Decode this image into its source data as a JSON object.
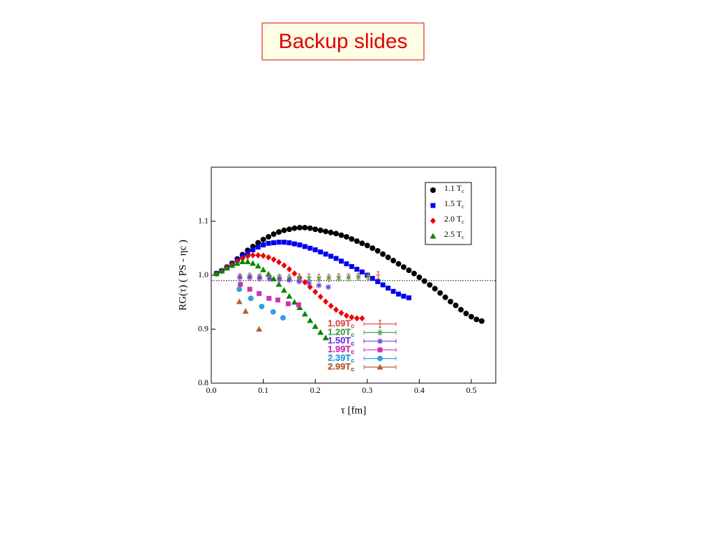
{
  "slide": {
    "title": "Backup slides"
  },
  "chart_data": {
    "type": "scatter",
    "x_label": "τ [fm]",
    "y_label": "RG(τ) ( PS - ηc )",
    "xlim": [
      0,
      0.547
    ],
    "ylim": [
      0.8,
      1.2
    ],
    "xticks": [
      {
        "value": 0,
        "label": "0.0"
      },
      0.1,
      0.2,
      0.3,
      0.4,
      0.5
    ],
    "yticks": [
      0.8,
      0.9,
      {
        "value": 1,
        "label": "1.0"
      },
      1.1
    ],
    "hline": 0.99,
    "series": [
      {
        "name": "1.1 Tc",
        "color": "#000000",
        "marker": "circle",
        "error_bars": false,
        "x": [
          0.01,
          0.02,
          0.03,
          0.04,
          0.05,
          0.06,
          0.07,
          0.08,
          0.09,
          0.1,
          0.11,
          0.12,
          0.13,
          0.14,
          0.15,
          0.16,
          0.17,
          0.18,
          0.19,
          0.2,
          0.21,
          0.22,
          0.23,
          0.24,
          0.25,
          0.26,
          0.27,
          0.28,
          0.29,
          0.3,
          0.31,
          0.32,
          0.33,
          0.34,
          0.35,
          0.36,
          0.37,
          0.38,
          0.39,
          0.4,
          0.41,
          0.42,
          0.43,
          0.44,
          0.45,
          0.46,
          0.47,
          0.48,
          0.49,
          0.5,
          0.51,
          0.52
        ],
        "values": [
          1.003,
          1.008,
          1.015,
          1.022,
          1.03,
          1.038,
          1.046,
          1.053,
          1.06,
          1.066,
          1.071,
          1.076,
          1.08,
          1.083,
          1.085,
          1.087,
          1.088,
          1.088,
          1.087,
          1.085,
          1.083,
          1.081,
          1.079,
          1.077,
          1.074,
          1.071,
          1.067,
          1.063,
          1.059,
          1.055,
          1.05,
          1.045,
          1.039,
          1.033,
          1.027,
          1.021,
          1.015,
          1.009,
          1.003,
          0.996,
          0.989,
          0.982,
          0.975,
          0.967,
          0.959,
          0.951,
          0.944,
          0.936,
          0.929,
          0.923,
          0.918,
          0.915
        ]
      },
      {
        "name": "1.5 Tc",
        "color": "#0000ee",
        "marker": "square",
        "error_bars": false,
        "x": [
          0.01,
          0.02,
          0.03,
          0.04,
          0.05,
          0.06,
          0.07,
          0.08,
          0.09,
          0.1,
          0.11,
          0.12,
          0.13,
          0.14,
          0.15,
          0.16,
          0.17,
          0.18,
          0.19,
          0.2,
          0.21,
          0.22,
          0.23,
          0.24,
          0.25,
          0.26,
          0.27,
          0.28,
          0.29,
          0.3,
          0.31,
          0.32,
          0.33,
          0.34,
          0.35,
          0.36,
          0.37,
          0.38
        ],
        "values": [
          1.003,
          1.008,
          1.014,
          1.021,
          1.028,
          1.035,
          1.041,
          1.047,
          1.052,
          1.056,
          1.059,
          1.06,
          1.061,
          1.061,
          1.06,
          1.058,
          1.056,
          1.053,
          1.05,
          1.047,
          1.043,
          1.039,
          1.035,
          1.031,
          1.026,
          1.021,
          1.016,
          1.011,
          1.006,
          1.0,
          0.994,
          0.988,
          0.982,
          0.976,
          0.97,
          0.965,
          0.961,
          0.958
        ]
      },
      {
        "name": "2.0 Tc",
        "color": "#ee0000",
        "marker": "diamond",
        "error_bars": false,
        "x": [
          0.01,
          0.02,
          0.03,
          0.04,
          0.05,
          0.06,
          0.07,
          0.08,
          0.09,
          0.1,
          0.11,
          0.12,
          0.13,
          0.14,
          0.15,
          0.16,
          0.17,
          0.18,
          0.19,
          0.2,
          0.21,
          0.22,
          0.23,
          0.24,
          0.25,
          0.26,
          0.27,
          0.28,
          0.29
        ],
        "values": [
          1.003,
          1.008,
          1.014,
          1.02,
          1.026,
          1.031,
          1.035,
          1.037,
          1.037,
          1.036,
          1.033,
          1.029,
          1.024,
          1.018,
          1.011,
          1.003,
          0.995,
          0.987,
          0.978,
          0.969,
          0.96,
          0.951,
          0.943,
          0.936,
          0.93,
          0.925,
          0.922,
          0.92,
          0.92
        ]
      },
      {
        "name": "2.5 Tc",
        "color": "#008800",
        "marker": "triangle",
        "error_bars": false,
        "x": [
          0.01,
          0.02,
          0.03,
          0.04,
          0.05,
          0.06,
          0.07,
          0.08,
          0.09,
          0.1,
          0.11,
          0.12,
          0.13,
          0.14,
          0.15,
          0.16,
          0.17,
          0.18,
          0.19,
          0.2,
          0.21,
          0.22
        ],
        "values": [
          1.003,
          1.008,
          1.013,
          1.018,
          1.022,
          1.025,
          1.025,
          1.022,
          1.017,
          1.01,
          1.002,
          0.993,
          0.983,
          0.972,
          0.961,
          0.95,
          0.94,
          0.928,
          0.916,
          0.905,
          0.894,
          0.884
        ]
      },
      {
        "name": "1.09Tc",
        "color": "#e05050",
        "marker": "plus",
        "error_bars": true,
        "x": [
          0.055,
          0.074,
          0.093,
          0.112,
          0.131,
          0.15,
          0.169,
          0.188,
          0.207,
          0.226,
          0.245,
          0.264,
          0.283,
          0.302,
          0.321
        ],
        "values": [
          0.996,
          0.997,
          0.996,
          0.996,
          0.995,
          0.995,
          0.996,
          0.996,
          0.995,
          0.995,
          0.996,
          0.996,
          0.997,
          0.998,
          1.0
        ]
      },
      {
        "name": "1.20Tc",
        "color": "#50a050",
        "marker": "x",
        "error_bars": true,
        "x": [
          0.055,
          0.074,
          0.093,
          0.112,
          0.131,
          0.15,
          0.169,
          0.188,
          0.207,
          0.226,
          0.245,
          0.264,
          0.283,
          0.302
        ],
        "values": [
          0.997,
          0.998,
          0.997,
          0.996,
          0.996,
          0.995,
          0.995,
          0.994,
          0.994,
          0.995,
          0.995,
          0.996,
          0.997,
          0.998
        ]
      },
      {
        "name": "1.50Tc",
        "color": "#7040e0",
        "marker": "asterisk",
        "error_bars": true,
        "x": [
          0.055,
          0.074,
          0.093,
          0.112,
          0.131,
          0.15,
          0.169,
          0.188,
          0.207,
          0.225
        ],
        "values": [
          0.996,
          0.996,
          0.995,
          0.994,
          0.993,
          0.991,
          0.988,
          0.985,
          0.981,
          0.978
        ]
      },
      {
        "name": "1.99Tc",
        "color": "#d030b0",
        "marker": "square",
        "error_bars": true,
        "x": [
          0.056,
          0.074,
          0.092,
          0.111,
          0.128,
          0.148,
          0.168
        ],
        "values": [
          0.983,
          0.974,
          0.966,
          0.957,
          0.954,
          0.947,
          0.945
        ]
      },
      {
        "name": "2.39Tc",
        "color": "#30a0e0",
        "marker": "circle",
        "error_bars": true,
        "x": [
          0.054,
          0.076,
          0.097,
          0.119,
          0.138
        ],
        "values": [
          0.974,
          0.957,
          0.942,
          0.932,
          0.921
        ]
      },
      {
        "name": "2.99Tc",
        "color": "#b06030",
        "marker": "triangle",
        "error_bars": true,
        "x": [
          0.054,
          0.066,
          0.092
        ],
        "values": [
          0.951,
          0.933,
          0.9
        ]
      }
    ]
  }
}
